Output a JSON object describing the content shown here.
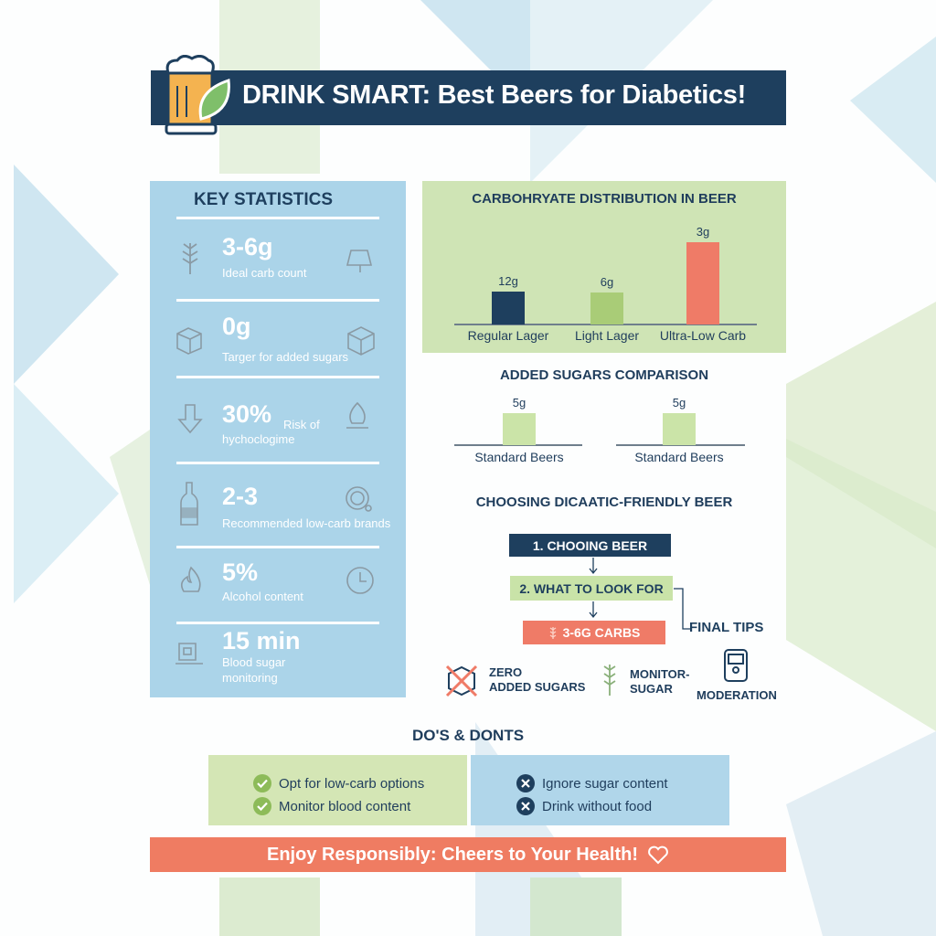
{
  "header": {
    "title": "DRINK SMART: Best Beers for Diabetics!",
    "icon": "beer-mug-leaf-icon"
  },
  "key_statistics": {
    "title": "KEY STATISTICS",
    "items": [
      {
        "value": "3-6g",
        "label": "Ideal carb count",
        "left_icon": "wheat-icon",
        "right_icon": "hops-icon"
      },
      {
        "value": "0g",
        "label": "Targer for added sugars",
        "left_icon": "sugar-cube-icon",
        "right_icon": "cube-icon"
      },
      {
        "value": "30%",
        "label_inline": "Risk of",
        "label": "hychoclogime",
        "left_icon": "arrow-down-icon",
        "right_icon": "flame-icon"
      },
      {
        "value": "2-3",
        "label": "Recommended low-carb brands",
        "left_icon": "bottle-icon",
        "right_icon": "ring-icon"
      },
      {
        "value": "5%",
        "label": "Alcohol content",
        "left_icon": "fire-icon",
        "right_icon": "clock-icon"
      },
      {
        "value": "15 min",
        "label": "Blood sugar monitoring",
        "left_icon": "glucose-meter-icon"
      }
    ]
  },
  "chart_data": [
    {
      "type": "bar",
      "title": "CARBOHRYATE DISTRIBUTION IN BEER",
      "categories": [
        "Regular Lager",
        "Light Lager",
        "Ultra-Low Carb"
      ],
      "values": [
        12,
        6,
        3
      ],
      "value_labels": [
        "12g",
        "6g",
        "3g"
      ],
      "colors": [
        "#1e3f5e",
        "#a9cc77",
        "#ef7b67"
      ],
      "grid": false
    },
    {
      "type": "bar",
      "title": "ADDED SUGARS COMPARISON",
      "categories": [
        "Standard Beers",
        "Standard Beers"
      ],
      "values": [
        5,
        5
      ],
      "value_labels": [
        "5g",
        "5g"
      ],
      "colors": [
        "#cbe4a8",
        "#cbe4a8"
      ],
      "grid": false
    }
  ],
  "flow": {
    "title": "CHOOSING DICAATIC-FRIENDLY BEER",
    "steps": [
      "1. CHOOING BEER",
      "2. WHAT TO LOOK FOR",
      "3-6G CARBS"
    ],
    "side_label": "FINAL TIPS",
    "tips": [
      {
        "line1": "ZERO",
        "line2": "ADDED SUGARS",
        "icon": "crossed-sugar-cube-icon"
      },
      {
        "line1": "MONITOR-",
        "line2": "SUGAR",
        "icon": "wheat-icon"
      },
      {
        "line1": "MODERATION",
        "icon": "glucose-meter-icon"
      }
    ]
  },
  "dos_donts": {
    "title": "DO'S & DONTS",
    "dos": [
      "Opt for low-carb options",
      "Monitor blood content"
    ],
    "donts": [
      "Ignore sugar content",
      "Drink without food"
    ]
  },
  "footer": {
    "text": "Enjoy Responsibly: Cheers to Your Health!",
    "icon": "heart-icon"
  },
  "colors": {
    "navy": "#1e3f5e",
    "green": "#cfe4b5",
    "blue": "#abd4e9",
    "coral": "#ef7c62"
  }
}
